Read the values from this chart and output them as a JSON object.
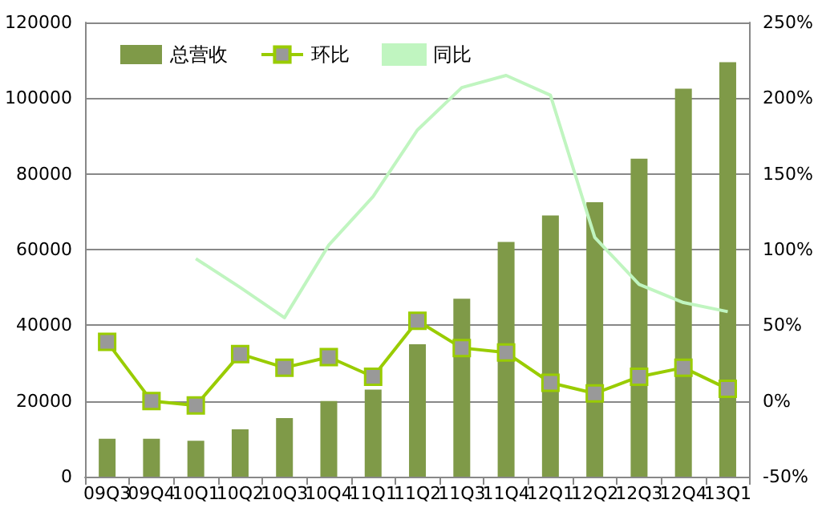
{
  "chart_data": {
    "type": "bar",
    "categories": [
      "09Q3",
      "09Q4",
      "10Q1",
      "10Q2",
      "10Q3",
      "10Q4",
      "11Q1",
      "11Q2",
      "11Q3",
      "11Q4",
      "12Q1",
      "12Q2",
      "12Q3",
      "12Q4",
      "13Q1"
    ],
    "series": [
      {
        "name": "总营收",
        "color": "#7f9a48",
        "values": [
          10000,
          10000,
          9500,
          12500,
          15500,
          20000,
          23000,
          35000,
          47000,
          62000,
          69000,
          72500,
          84000,
          102500,
          109500
        ]
      },
      {
        "name": "环比",
        "type": "line",
        "axis": "y2",
        "marker": "square",
        "color": "#99cc00",
        "values": [
          39,
          0,
          -3,
          31,
          22,
          29,
          16,
          53,
          35,
          32,
          12,
          5,
          16,
          22,
          8
        ]
      },
      {
        "name": "同比",
        "type": "line",
        "axis": "y2",
        "marker": "none",
        "color": "#c0f5c0",
        "values": [
          null,
          null,
          94,
          75,
          55,
          103,
          135,
          179,
          207,
          215,
          202,
          108,
          77,
          65,
          59
        ]
      }
    ],
    "ylim": [
      0,
      120000
    ],
    "yticks": [
      0,
      20000,
      40000,
      60000,
      80000,
      100000,
      120000
    ],
    "y2lim": [
      -50,
      250
    ],
    "y2ticks": [
      {
        "value": -50,
        "label": "-50%"
      },
      {
        "value": 0,
        "label": "0%"
      },
      {
        "value": 50,
        "label": "50%"
      },
      {
        "value": 100,
        "label": "100%"
      },
      {
        "value": 150,
        "label": "150%"
      },
      {
        "value": 200,
        "label": "200%"
      },
      {
        "value": 250,
        "label": "250%"
      }
    ],
    "grid": "y",
    "legend": "top left"
  }
}
